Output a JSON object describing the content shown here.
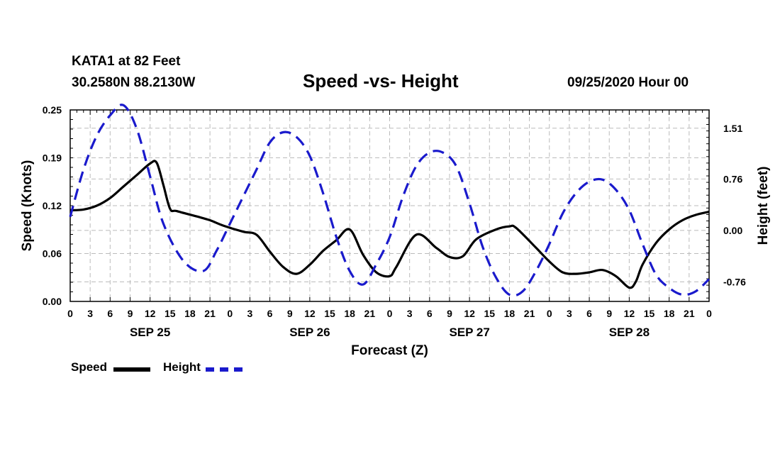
{
  "header": {
    "station": "KATA1 at 82 Feet",
    "coords": "30.2580N 88.2130W",
    "title": "Speed -vs- Height",
    "datetime": "09/25/2020 Hour 00"
  },
  "colors": {
    "speed": "#000000",
    "height": "#1a1acc",
    "grid": "#bbbbbb"
  },
  "chart_data": {
    "type": "line",
    "title": "Speed -vs- Height",
    "xlabel": "Forecast (Z)",
    "ylabel": "Speed (Knots)",
    "y2label": "Height (feet)",
    "x_hours_range": [
      0,
      96
    ],
    "ylim": [
      0,
      0.25
    ],
    "y2lim": [
      -1.05,
      1.78
    ],
    "y_ticks": [
      "0.00",
      "0.06",
      "0.12",
      "0.19",
      "0.25"
    ],
    "y_tick_values": [
      0,
      0.0625,
      0.125,
      0.1875,
      0.25
    ],
    "y2_ticks": [
      "-0.76",
      "0.00",
      "0.76",
      "1.51"
    ],
    "y2_tick_values": [
      -0.76,
      0,
      0.76,
      1.51
    ],
    "x_tick_labels": [
      "0",
      "3",
      "6",
      "9",
      "12",
      "15",
      "18",
      "21",
      "0",
      "3",
      "6",
      "9",
      "12",
      "15",
      "18",
      "21",
      "0",
      "3",
      "6",
      "9",
      "12",
      "15",
      "18",
      "21",
      "0",
      "3",
      "6",
      "9",
      "12",
      "15",
      "18",
      "21",
      "0"
    ],
    "day_labels": [
      "SEP 25",
      "SEP 26",
      "SEP 27",
      "SEP 28"
    ],
    "legend": [
      {
        "name": "Speed",
        "style": "solid"
      },
      {
        "name": "Height",
        "style": "dashed"
      }
    ],
    "series": [
      {
        "name": "Speed",
        "axis": "left",
        "x": [
          0,
          2,
          4,
          6,
          8,
          10,
          12,
          13,
          14,
          15,
          16,
          19,
          21,
          23,
          26,
          28,
          30,
          32,
          34,
          36,
          38,
          40,
          42,
          44,
          46,
          48,
          49,
          52,
          55,
          57,
          59,
          61,
          64,
          66,
          67,
          70,
          72,
          74,
          76,
          78,
          80,
          82,
          84,
          85,
          86,
          88,
          90,
          92,
          94,
          96
        ],
        "values": [
          0.119,
          0.12,
          0.125,
          0.135,
          0.15,
          0.165,
          0.18,
          0.181,
          0.152,
          0.121,
          0.118,
          0.111,
          0.106,
          0.099,
          0.091,
          0.087,
          0.065,
          0.045,
          0.036,
          0.048,
          0.066,
          0.08,
          0.094,
          0.061,
          0.038,
          0.033,
          0.045,
          0.087,
          0.07,
          0.058,
          0.059,
          0.081,
          0.094,
          0.098,
          0.096,
          0.07,
          0.052,
          0.038,
          0.036,
          0.038,
          0.041,
          0.033,
          0.018,
          0.026,
          0.048,
          0.076,
          0.094,
          0.106,
          0.113,
          0.117
        ]
      },
      {
        "name": "Height",
        "axis": "right",
        "x": [
          0,
          2,
          4,
          6,
          8,
          10,
          12,
          14,
          17,
          20,
          22,
          24,
          26,
          28,
          30,
          32,
          34,
          36,
          38,
          40,
          42,
          44,
          46,
          48,
          50,
          52,
          54,
          56,
          58,
          60,
          62,
          64,
          66,
          68,
          70,
          72,
          74,
          76,
          78,
          80,
          82,
          84,
          86,
          88,
          90,
          92,
          94,
          96
        ],
        "values": [
          0.2,
          0.9,
          1.4,
          1.7,
          1.85,
          1.5,
          0.8,
          0.1,
          -0.45,
          -0.6,
          -0.3,
          0.1,
          0.5,
          0.9,
          1.3,
          1.45,
          1.38,
          1.1,
          0.55,
          -0.1,
          -0.6,
          -0.8,
          -0.5,
          -0.1,
          0.5,
          0.95,
          1.15,
          1.15,
          0.95,
          0.4,
          -0.25,
          -0.7,
          -0.95,
          -0.9,
          -0.6,
          -0.2,
          0.25,
          0.55,
          0.72,
          0.75,
          0.6,
          0.3,
          -0.2,
          -0.65,
          -0.85,
          -0.95,
          -0.9,
          -0.72
        ]
      }
    ]
  }
}
